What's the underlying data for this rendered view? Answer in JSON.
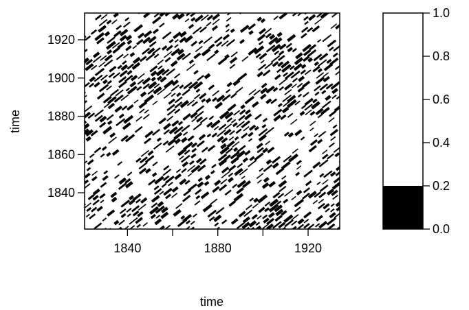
{
  "chart_data": [
    {
      "type": "heatmap",
      "title": "",
      "xlabel": "time",
      "ylabel": "time",
      "xlim": [
        1821,
        1934
      ],
      "ylim": [
        1821,
        1934
      ],
      "xticks": [
        1840,
        1880,
        1920
      ],
      "yticks": [
        1840,
        1860,
        1880,
        1900,
        1920
      ],
      "x_minor_ticks": [
        1860,
        1900
      ],
      "value_range": [
        0,
        1
      ],
      "colors": {
        "low": "#000000",
        "high": "#ffffff",
        "frame": "#000000"
      },
      "grid": false,
      "pattern": "binary recurrence plot with diagonal black streaks"
    },
    {
      "type": "bar",
      "title": "",
      "role": "legend",
      "ylim": [
        0,
        1
      ],
      "ticks": [
        "0.0",
        "0.2",
        "0.4",
        "0.6",
        "0.8",
        "1.0"
      ],
      "tick_values": [
        0,
        0.2,
        0.4,
        0.6,
        0.8,
        1.0
      ],
      "segments": [
        {
          "from": 0,
          "to": 0.2,
          "color": "#000000"
        },
        {
          "from": 0.2,
          "to": 1.0,
          "color": "#ffffff"
        }
      ]
    }
  ]
}
